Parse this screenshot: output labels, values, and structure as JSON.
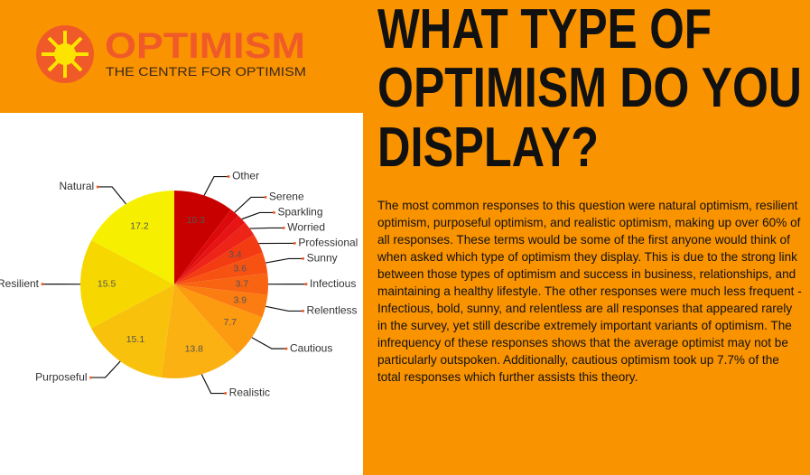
{
  "logo": {
    "name": "OPTIMISM",
    "tagline": "THE CENTRE FOR OPTIMISM"
  },
  "heading": [
    "WHAT TYPE OF",
    "OPTIMISM DO YOU",
    "DISPLAY?"
  ],
  "body": "The most common responses to this question were natural optimism, resilient optimism, purposeful optimism, and realistic optimism, making up over 60% of all responses. These terms would be some of the first anyone would think of when asked which type of optimism they display. This is due to the strong link between those types of optimism and success in business, relationships, and maintaining a healthy lifestyle. The other responses were much less frequent - Infectious, bold, sunny, and relentless are all responses that appeared rarely in the survey, yet still describe extremely important variants of optimism. The infrequency of these responses shows that the average optimist may not be particularly outspoken. Additionally, cautious optimism took up 7.7% of the total responses which further assists this theory.",
  "chart_data": {
    "type": "pie",
    "categories": [
      "Other",
      "Serene",
      "Sparkling",
      "Worried",
      "Professional",
      "Sunny",
      "Infectious",
      "Relentless",
      "Cautious",
      "Realistic",
      "Purposeful",
      "Resilient",
      "Natural"
    ],
    "values": [
      10.3,
      1.6,
      1.7,
      2.5,
      3.4,
      3.6,
      3.7,
      3.9,
      7.7,
      13.8,
      15.1,
      15.5,
      17.2
    ],
    "colors": [
      "#c80000",
      "#dc0a0a",
      "#e61414",
      "#ee2418",
      "#f43c12",
      "#f75212",
      "#f96412",
      "#fb7c10",
      "#fc9a10",
      "#fbb112",
      "#f8c20c",
      "#f6d800",
      "#f6f000"
    ]
  }
}
